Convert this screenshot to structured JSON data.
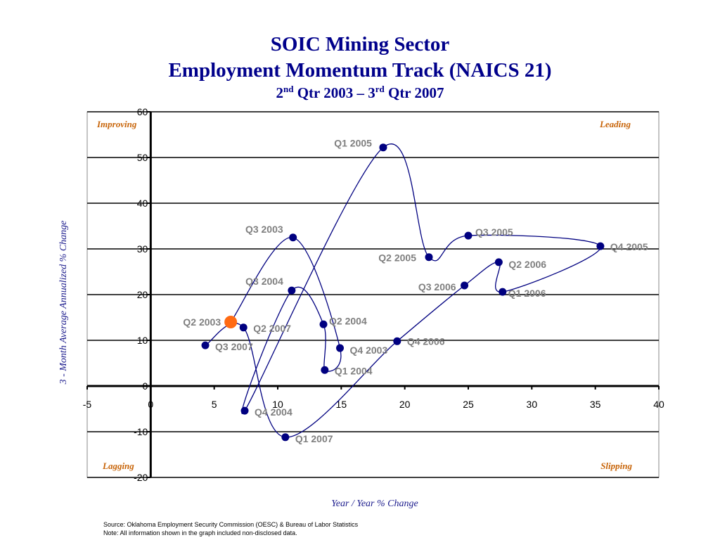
{
  "chart_data": {
    "type": "scatter",
    "title": [
      "SOIC Mining Sector",
      "Employment Momentum Track (NAICS 21)"
    ],
    "subtitle": [
      "2",
      "nd",
      " Qtr 2003 – 3",
      "rd",
      " Qtr 2007"
    ],
    "x_label": "Year / Year % Change",
    "y_label": "3 - Month Average Annualized % Change",
    "quadrants": [
      "Improving",
      "Leading",
      "Lagging",
      "Slipping"
    ],
    "labels": [
      "Q2 2003",
      "Q3 2003",
      "Q4 2003",
      "Q1 2004",
      "Q2 2004",
      "Q3 2004",
      "Q4 2004",
      "Q1 2005",
      "Q2 2005",
      "Q3 2005",
      "Q4 2005",
      "Q1 2006",
      "Q2 2006",
      "Q3 2006",
      "Q4 2006",
      "Q1 2007",
      "Q2 2007",
      "Q3 2007"
    ],
    "x": [
      6.3,
      11.2,
      14.9,
      13.7,
      13.6,
      11.1,
      7.4,
      18.3,
      21.9,
      25.0,
      35.4,
      27.7,
      27.4,
      24.7,
      19.4,
      10.6,
      7.3,
      4.3
    ],
    "values": [
      14.0,
      32.5,
      8.3,
      3.5,
      13.5,
      20.9,
      -5.4,
      52.2,
      28.2,
      32.9,
      30.6,
      20.6,
      27.1,
      22.0,
      9.8,
      -11.2,
      12.8,
      8.9
    ],
    "color": "#000080",
    "highlight_color": "#ff6a13",
    "smooth": true,
    "xlim": [
      -5,
      40
    ],
    "xticks": [
      -5,
      0,
      5,
      10,
      15,
      20,
      25,
      30,
      35,
      40
    ],
    "ylim": [
      -20,
      60
    ],
    "yticks": [
      -20,
      -10,
      0,
      10,
      20,
      30,
      40,
      50,
      60
    ],
    "grid": true,
    "source": [
      "Source:  Oklahoma Employment Security Commission (OESC) & Bureau of Labor Statistics",
      "Note: All information shown in the graph included non-disclosed data."
    ]
  }
}
